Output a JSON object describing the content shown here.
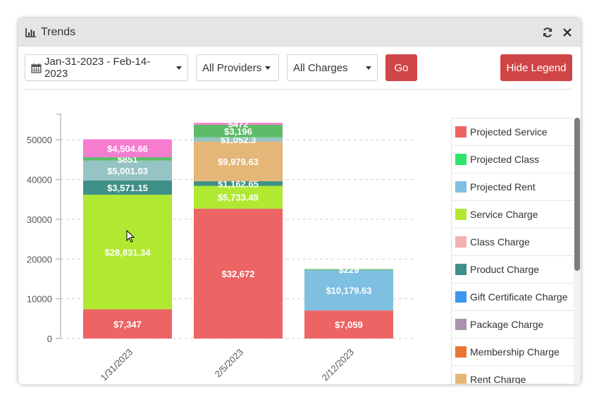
{
  "window": {
    "title": "Trends",
    "title_icon": "bar-chart-icon",
    "refresh_icon": "refresh-icon",
    "close_icon": "close-icon"
  },
  "toolbar": {
    "date_range": "Jan-31-2023 - Feb-14-2023",
    "date_icon": "calendar-icon",
    "providers": "All Providers",
    "charges": "All Charges",
    "go_label": "Go",
    "hide_legend_label": "Hide Legend"
  },
  "colors": {
    "accent_button": "#d04545"
  },
  "legend": {
    "items": [
      {
        "label": "Projected Service",
        "color": "#ec6464"
      },
      {
        "label": "Projected Class",
        "color": "#2ee66b"
      },
      {
        "label": "Projected Rent",
        "color": "#7fbfe0"
      },
      {
        "label": "Service Charge",
        "color": "#b0e832"
      },
      {
        "label": "Class Charge",
        "color": "#f4b0b0"
      },
      {
        "label": "Product Charge",
        "color": "#3f9087"
      },
      {
        "label": "Gift Certificate Charge",
        "color": "#3a97ec"
      },
      {
        "label": "Package Charge",
        "color": "#a993ac"
      },
      {
        "label": "Membership Charge",
        "color": "#ec7535"
      },
      {
        "label": "Rent Charge",
        "color": "#e4b677"
      }
    ]
  },
  "chart_data": {
    "type": "bar",
    "stacked": true,
    "title": "",
    "xlabel": "",
    "ylabel": "",
    "categories": [
      "1/31/2023",
      "2/5/2023",
      "2/12/2023"
    ],
    "ylim": [
      0,
      55000
    ],
    "yticks": [
      0,
      10000,
      20000,
      30000,
      40000,
      50000
    ],
    "grid": true,
    "legend_position": "right",
    "series": [
      {
        "name": "Projected Service",
        "color": "#ec6464",
        "values": [
          7347,
          32672,
          7059
        ],
        "labels": [
          "$7,347",
          "$32,672",
          "$7,059"
        ]
      },
      {
        "name": "Projected Rent",
        "color": "#7fbfe0",
        "values": [
          0,
          0,
          10179.63
        ],
        "labels": [
          "",
          "",
          "$10,179.63"
        ]
      },
      {
        "name": "Service Charge",
        "color": "#b0e832",
        "values": [
          28831.34,
          5733.49,
          0
        ],
        "labels": [
          "$28,831.34",
          "$5,733.49",
          ""
        ]
      },
      {
        "name": "Product Charge",
        "color": "#3f9087",
        "values": [
          3571.15,
          1162.65,
          0
        ],
        "labels": [
          "$3,571.15",
          "$1,162.65",
          ""
        ]
      },
      {
        "name": "Rent Charge",
        "color": "#e4b677",
        "values": [
          0,
          9979.63,
          0
        ],
        "labels": [
          "",
          "$9,979.63",
          ""
        ]
      },
      {
        "name": "Series (grey-teal)",
        "color": "#96c3c3",
        "values": [
          5001.03,
          1052.3,
          0
        ],
        "labels": [
          "$5,001.03",
          "$1,052.3",
          ""
        ]
      },
      {
        "name": "Series (green)",
        "color": "#5cbc68",
        "values": [
          851,
          3196,
          229
        ],
        "labels": [
          "$851",
          "$3,196",
          "$229"
        ]
      },
      {
        "name": "Series (pink)",
        "color": "#f67cd0",
        "values": [
          4504.66,
          472,
          0
        ],
        "labels": [
          "$4,504.66",
          "$472",
          ""
        ]
      }
    ]
  }
}
